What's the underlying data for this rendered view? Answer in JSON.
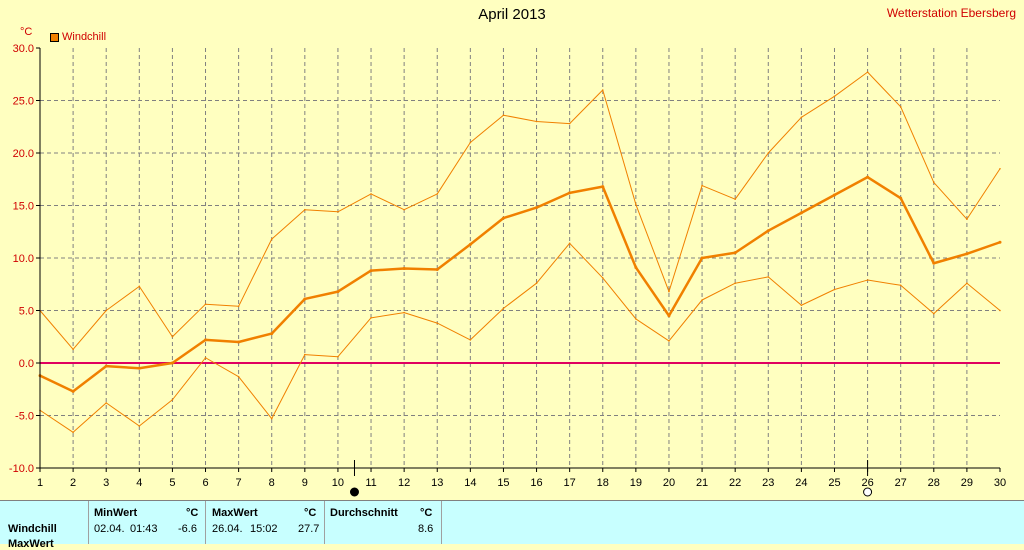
{
  "header": {
    "title": "April 2013",
    "station": "Wetterstation Ebersberg",
    "unit": "°C",
    "legend_label": "Windchill"
  },
  "colors": {
    "background": "#ffffc0",
    "series": "#f08000",
    "zero_line": "#e00060",
    "grid": "#808080",
    "table_bg": "#c8ffff"
  },
  "chart_data": {
    "type": "line",
    "x": [
      1,
      2,
      3,
      4,
      5,
      6,
      7,
      8,
      9,
      10,
      11,
      12,
      13,
      14,
      15,
      16,
      17,
      18,
      19,
      20,
      21,
      22,
      23,
      24,
      25,
      26,
      27,
      28,
      29,
      30
    ],
    "xlim": [
      1,
      30
    ],
    "ylim": [
      -10,
      30
    ],
    "yticks": [
      "-10.0",
      "-5.0",
      "0.0",
      "5.0",
      "10.0",
      "15.0",
      "20.0",
      "25.0",
      "30.0"
    ],
    "xticks": [
      "1",
      "2",
      "3",
      "4",
      "5",
      "6",
      "7",
      "8",
      "9",
      "10",
      "11",
      "12",
      "13",
      "14",
      "15",
      "16",
      "17",
      "18",
      "19",
      "20",
      "21",
      "22",
      "23",
      "24",
      "25",
      "26",
      "27",
      "28",
      "29",
      "30"
    ],
    "grid": true,
    "series": [
      {
        "name": "Windchill",
        "role": "avg",
        "values": [
          -1.2,
          -2.7,
          -0.3,
          -0.5,
          0.0,
          2.2,
          2.0,
          2.8,
          6.1,
          6.8,
          8.8,
          9.0,
          8.9,
          11.3,
          13.8,
          14.8,
          16.2,
          16.8,
          9.1,
          4.5,
          10.0,
          10.5,
          12.6,
          14.3,
          16.0,
          17.7,
          15.7,
          9.5,
          10.4,
          11.5
        ]
      },
      {
        "role": "max",
        "values": [
          5.0,
          1.3,
          5.0,
          7.3,
          2.5,
          5.6,
          5.4,
          11.8,
          14.6,
          14.4,
          16.1,
          14.6,
          16.1,
          21.0,
          23.6,
          23.0,
          22.8,
          26.0,
          15.1,
          6.8,
          16.9,
          15.6,
          20.0,
          23.4,
          25.4,
          27.7,
          24.4,
          17.2,
          13.7,
          18.5
        ]
      },
      {
        "role": "min",
        "values": [
          -4.5,
          -6.6,
          -3.8,
          -6.0,
          -3.5,
          0.5,
          -1.3,
          -5.3,
          0.8,
          0.6,
          4.3,
          4.8,
          3.8,
          2.2,
          5.2,
          7.6,
          11.4,
          8.1,
          4.2,
          2.1,
          6.0,
          7.6,
          8.2,
          5.5,
          7.0,
          7.9,
          7.4,
          4.7,
          7.6,
          5.0
        ]
      }
    ],
    "markers": [
      {
        "x": 10.5,
        "symbol": "filled-circle"
      },
      {
        "x": 26,
        "symbol": "open-circle"
      }
    ]
  },
  "stats": {
    "row_label": "Windchill",
    "row_label_2": "MaxWert",
    "min_header": "MinWert",
    "min_unit": "°C",
    "min_date": "02.04.",
    "min_time": "01:43",
    "min_value": "-6.6",
    "max_header": "MaxWert",
    "max_unit": "°C",
    "max_date": "26.04.",
    "max_time": "15:02",
    "max_value": "27.7",
    "avg_header": "Durchschnitt",
    "avg_unit": "°C",
    "avg_value": "8.6"
  }
}
